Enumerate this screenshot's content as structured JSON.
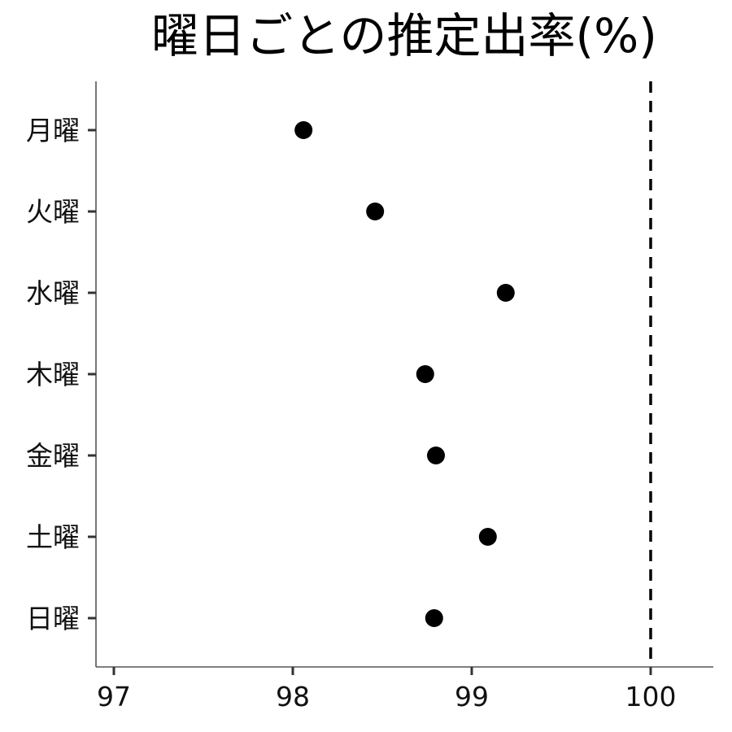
{
  "chart_data": {
    "type": "scatter",
    "title": "曜日ごとの推定出率(%)",
    "xlabel": "",
    "ylabel": "",
    "xlim": [
      96.9,
      100.35
    ],
    "x_ticks": [
      "97",
      "98",
      "99",
      "100"
    ],
    "categories": [
      "月曜",
      "火曜",
      "水曜",
      "木曜",
      "金曜",
      "土曜",
      "日曜"
    ],
    "values": [
      98.06,
      98.46,
      99.19,
      98.74,
      98.8,
      99.09,
      98.79
    ],
    "reference_line": {
      "x": 100,
      "style": "dashed"
    },
    "grid": false,
    "legend": "none",
    "color": "#000000"
  }
}
